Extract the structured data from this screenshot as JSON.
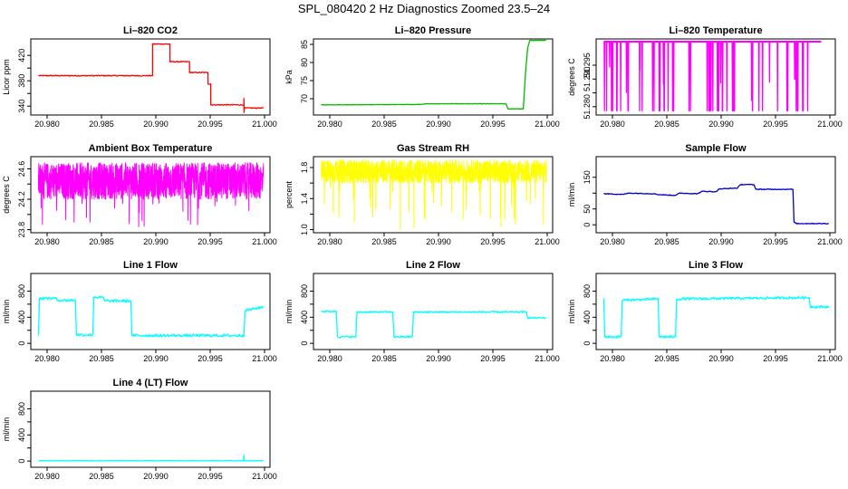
{
  "figure_title": "SPL_080420  2 Hz Diagnostics Zoomed 23.5–24",
  "chart_data": [
    {
      "type": "line",
      "title": "Li–820 CO2",
      "ylabel": "Licor ppm",
      "color": "#ff0000",
      "xlim": [
        20.9785,
        21.0005
      ],
      "ylim": [
        326,
        446
      ],
      "xticks": [
        20.98,
        20.985,
        20.99,
        20.995,
        21.0
      ],
      "xtick_labels": [
        "20.980",
        "20.985",
        "20.990",
        "20.995",
        "21.000"
      ],
      "yticks": [
        340,
        360,
        380,
        400,
        420
      ],
      "ytick_labels": [
        "340",
        "",
        "380",
        "",
        "420"
      ],
      "noise": 0.7,
      "points": [
        [
          20.9792,
          388
        ],
        [
          20.9897,
          388
        ],
        [
          20.9897,
          438
        ],
        [
          20.9913,
          438
        ],
        [
          20.9913,
          410
        ],
        [
          20.9931,
          410
        ],
        [
          20.9931,
          393
        ],
        [
          20.9948,
          393
        ],
        [
          20.9948,
          375
        ],
        [
          20.99505,
          375
        ],
        [
          20.99505,
          342
        ],
        [
          20.9981,
          342
        ],
        [
          20.9981,
          352
        ],
        [
          20.99812,
          330
        ],
        [
          20.99815,
          337
        ],
        [
          20.9999,
          337
        ]
      ]
    },
    {
      "type": "line",
      "title": "Li–820 Pressure",
      "ylabel": "kPa",
      "color": "#00bb00",
      "xlim": [
        20.9785,
        21.0005
      ],
      "ylim": [
        65.5,
        86.5
      ],
      "xticks": [
        20.98,
        20.985,
        20.99,
        20.995,
        21.0
      ],
      "xtick_labels": [
        "20.980",
        "20.985",
        "20.990",
        "20.995",
        "21.000"
      ],
      "yticks": [
        70,
        75,
        80,
        85
      ],
      "ytick_labels": [
        "70",
        "75",
        "80",
        "85"
      ],
      "noise": 0.05,
      "points": [
        [
          20.9792,
          68.3
        ],
        [
          20.988,
          68.4
        ],
        [
          20.989,
          68.6
        ],
        [
          20.9962,
          68.6
        ],
        [
          20.9964,
          67.2
        ],
        [
          20.9978,
          67.2
        ],
        [
          20.998,
          77
        ],
        [
          20.9982,
          84
        ],
        [
          20.9984,
          86.1
        ],
        [
          20.9999,
          86.1
        ]
      ]
    },
    {
      "type": "line",
      "title": "Li–820 Temperature",
      "ylabel": "degrees C",
      "color": "#ff00ff",
      "xlim": [
        20.9785,
        21.0005
      ],
      "ylim": [
        51.277,
        51.3045
      ],
      "xticks": [
        20.98,
        20.985,
        20.99,
        20.995,
        21.0
      ],
      "xtick_labels": [
        "20.980",
        "20.985",
        "20.990",
        "20.995",
        "21.000"
      ],
      "yticks": [
        51.28,
        51.285,
        51.29,
        51.295
      ],
      "ytick_labels": [
        "51.280",
        "",
        "51.290",
        "51.295"
      ],
      "base": 51.3035,
      "low": 51.2785,
      "spike_count": 60,
      "spike_range": [
        20.9792,
        20.9992
      ]
    },
    {
      "type": "line",
      "title": "Ambient Box Temperature",
      "ylabel": "degrees C",
      "color": "#ff00ff",
      "xlim": [
        20.9785,
        21.0005
      ],
      "ylim": [
        23.76,
        24.76
      ],
      "xticks": [
        20.98,
        20.985,
        20.99,
        20.995,
        21.0
      ],
      "xtick_labels": [
        "20.980",
        "20.985",
        "20.990",
        "20.995",
        "21.000"
      ],
      "yticks": [
        23.8,
        24.0,
        24.2,
        24.4,
        24.6
      ],
      "ytick_labels": [
        "23.8",
        "",
        "24.2",
        "",
        "24.6"
      ],
      "center": 24.38,
      "band": [
        24.2,
        24.68
      ],
      "extreme": [
        23.82,
        24.7
      ],
      "x_range": [
        20.9792,
        20.9999
      ]
    },
    {
      "type": "line",
      "title": "Gas Stream RH",
      "ylabel": "percent",
      "color": "#ffff00",
      "xlim": [
        20.9785,
        21.0005
      ],
      "ylim": [
        0.96,
        1.94
      ],
      "xticks": [
        20.98,
        20.985,
        20.99,
        20.995,
        21.0
      ],
      "xtick_labels": [
        "20.980",
        "20.985",
        "20.990",
        "20.995",
        "21.000"
      ],
      "yticks": [
        1.0,
        1.2,
        1.4,
        1.6,
        1.8
      ],
      "ytick_labels": [
        "1.0",
        "",
        "1.4",
        "",
        "1.8"
      ],
      "center": 1.72,
      "band": [
        1.6,
        1.9
      ],
      "extreme": [
        1.0,
        1.9
      ],
      "x_range": [
        20.9792,
        20.9999
      ]
    },
    {
      "type": "line",
      "title": "Sample Flow",
      "ylabel": "ml/min",
      "color": "#0000cc",
      "xlim": [
        20.9785,
        21.0005
      ],
      "ylim": [
        -25,
        215
      ],
      "xticks": [
        20.98,
        20.985,
        20.99,
        20.995,
        21.0
      ],
      "xtick_labels": [
        "20.980",
        "20.985",
        "20.990",
        "20.995",
        "21.000"
      ],
      "yticks": [
        0,
        50,
        100,
        150
      ],
      "ytick_labels": [
        "0",
        "50",
        "",
        "150"
      ],
      "noise": 1.2,
      "points": [
        [
          20.9792,
          98
        ],
        [
          20.981,
          96
        ],
        [
          20.9815,
          100
        ],
        [
          20.9838,
          98
        ],
        [
          20.9843,
          95
        ],
        [
          20.9858,
          93
        ],
        [
          20.9862,
          100
        ],
        [
          20.9878,
          98
        ],
        [
          20.9883,
          106
        ],
        [
          20.9895,
          104
        ],
        [
          20.9898,
          113
        ],
        [
          20.9915,
          116
        ],
        [
          20.9918,
          127
        ],
        [
          20.993,
          127
        ],
        [
          20.9932,
          112
        ],
        [
          20.9966,
          112
        ],
        [
          20.9967,
          10
        ],
        [
          20.9969,
          4
        ],
        [
          20.9999,
          4
        ]
      ]
    },
    {
      "type": "line",
      "title": "Line 1 Flow",
      "ylabel": "ml/min",
      "color": "#00ffff",
      "xlim": [
        20.9785,
        21.0005
      ],
      "ylim": [
        -95,
        1070
      ],
      "xticks": [
        20.98,
        20.985,
        20.99,
        20.995,
        21.0
      ],
      "xtick_labels": [
        "20.980",
        "20.985",
        "20.990",
        "20.995",
        "21.000"
      ],
      "yticks": [
        0,
        200,
        400,
        600,
        800
      ],
      "ytick_labels": [
        "0",
        "",
        "400",
        "",
        "800"
      ],
      "noise": 20,
      "points": [
        [
          20.9792,
          120
        ],
        [
          20.9793,
          690
        ],
        [
          20.9808,
          690
        ],
        [
          20.9809,
          660
        ],
        [
          20.9826,
          660
        ],
        [
          20.9827,
          130
        ],
        [
          20.9842,
          130
        ],
        [
          20.9843,
          710
        ],
        [
          20.9852,
          700
        ],
        [
          20.9853,
          650
        ],
        [
          20.9877,
          650
        ],
        [
          20.9878,
          120
        ],
        [
          20.9981,
          120
        ],
        [
          20.9982,
          500
        ],
        [
          20.9999,
          560
        ]
      ]
    },
    {
      "type": "line",
      "title": "Line 2 Flow",
      "ylabel": "ml/min",
      "color": "#00ffff",
      "xlim": [
        20.9785,
        21.0005
      ],
      "ylim": [
        -95,
        1070
      ],
      "xticks": [
        20.98,
        20.985,
        20.99,
        20.995,
        21.0
      ],
      "xtick_labels": [
        "20.980",
        "20.985",
        "20.990",
        "20.995",
        "21.000"
      ],
      "yticks": [
        0,
        200,
        400,
        600,
        800
      ],
      "ytick_labels": [
        "0",
        "",
        "400",
        "",
        "800"
      ],
      "noise": 12,
      "points": [
        [
          20.9792,
          490
        ],
        [
          20.9806,
          490
        ],
        [
          20.9807,
          100
        ],
        [
          20.9824,
          100
        ],
        [
          20.9825,
          480
        ],
        [
          20.9858,
          480
        ],
        [
          20.9859,
          100
        ],
        [
          20.9876,
          100
        ],
        [
          20.9877,
          480
        ],
        [
          20.9981,
          480
        ],
        [
          20.9982,
          390
        ],
        [
          20.9999,
          390
        ]
      ]
    },
    {
      "type": "line",
      "title": "Line 3 Flow",
      "ylabel": "ml/min",
      "color": "#00ffff",
      "xlim": [
        20.9785,
        21.0005
      ],
      "ylim": [
        -95,
        1070
      ],
      "xticks": [
        20.98,
        20.985,
        20.99,
        20.995,
        21.0
      ],
      "xtick_labels": [
        "20.980",
        "20.985",
        "20.990",
        "20.995",
        "21.000"
      ],
      "yticks": [
        0,
        200,
        400,
        600,
        800
      ],
      "ytick_labels": [
        "0",
        "",
        "400",
        "",
        "800"
      ],
      "noise": 18,
      "points": [
        [
          20.9792,
          690
        ],
        [
          20.9793,
          100
        ],
        [
          20.9808,
          100
        ],
        [
          20.9809,
          660
        ],
        [
          20.9842,
          680
        ],
        [
          20.9843,
          100
        ],
        [
          20.9858,
          100
        ],
        [
          20.9859,
          680
        ],
        [
          20.9981,
          700
        ],
        [
          20.9982,
          560
        ],
        [
          20.9999,
          560
        ]
      ]
    },
    {
      "type": "line",
      "title": "Line 4 (LT) Flow",
      "ylabel": "ml/min",
      "color": "#00ffff",
      "xlim": [
        20.9785,
        21.0005
      ],
      "ylim": [
        -95,
        1070
      ],
      "xticks": [
        20.98,
        20.985,
        20.99,
        20.995,
        21.0
      ],
      "xtick_labels": [
        "20.980",
        "20.985",
        "20.990",
        "20.995",
        "21.000"
      ],
      "yticks": [
        0,
        200,
        400,
        600,
        800
      ],
      "ytick_labels": [
        "0",
        "",
        "400",
        "",
        "800"
      ],
      "noise": 3,
      "points": [
        [
          20.9792,
          5
        ],
        [
          20.99808,
          5
        ],
        [
          20.9981,
          90
        ],
        [
          20.99812,
          5
        ],
        [
          20.9999,
          5
        ]
      ]
    }
  ]
}
